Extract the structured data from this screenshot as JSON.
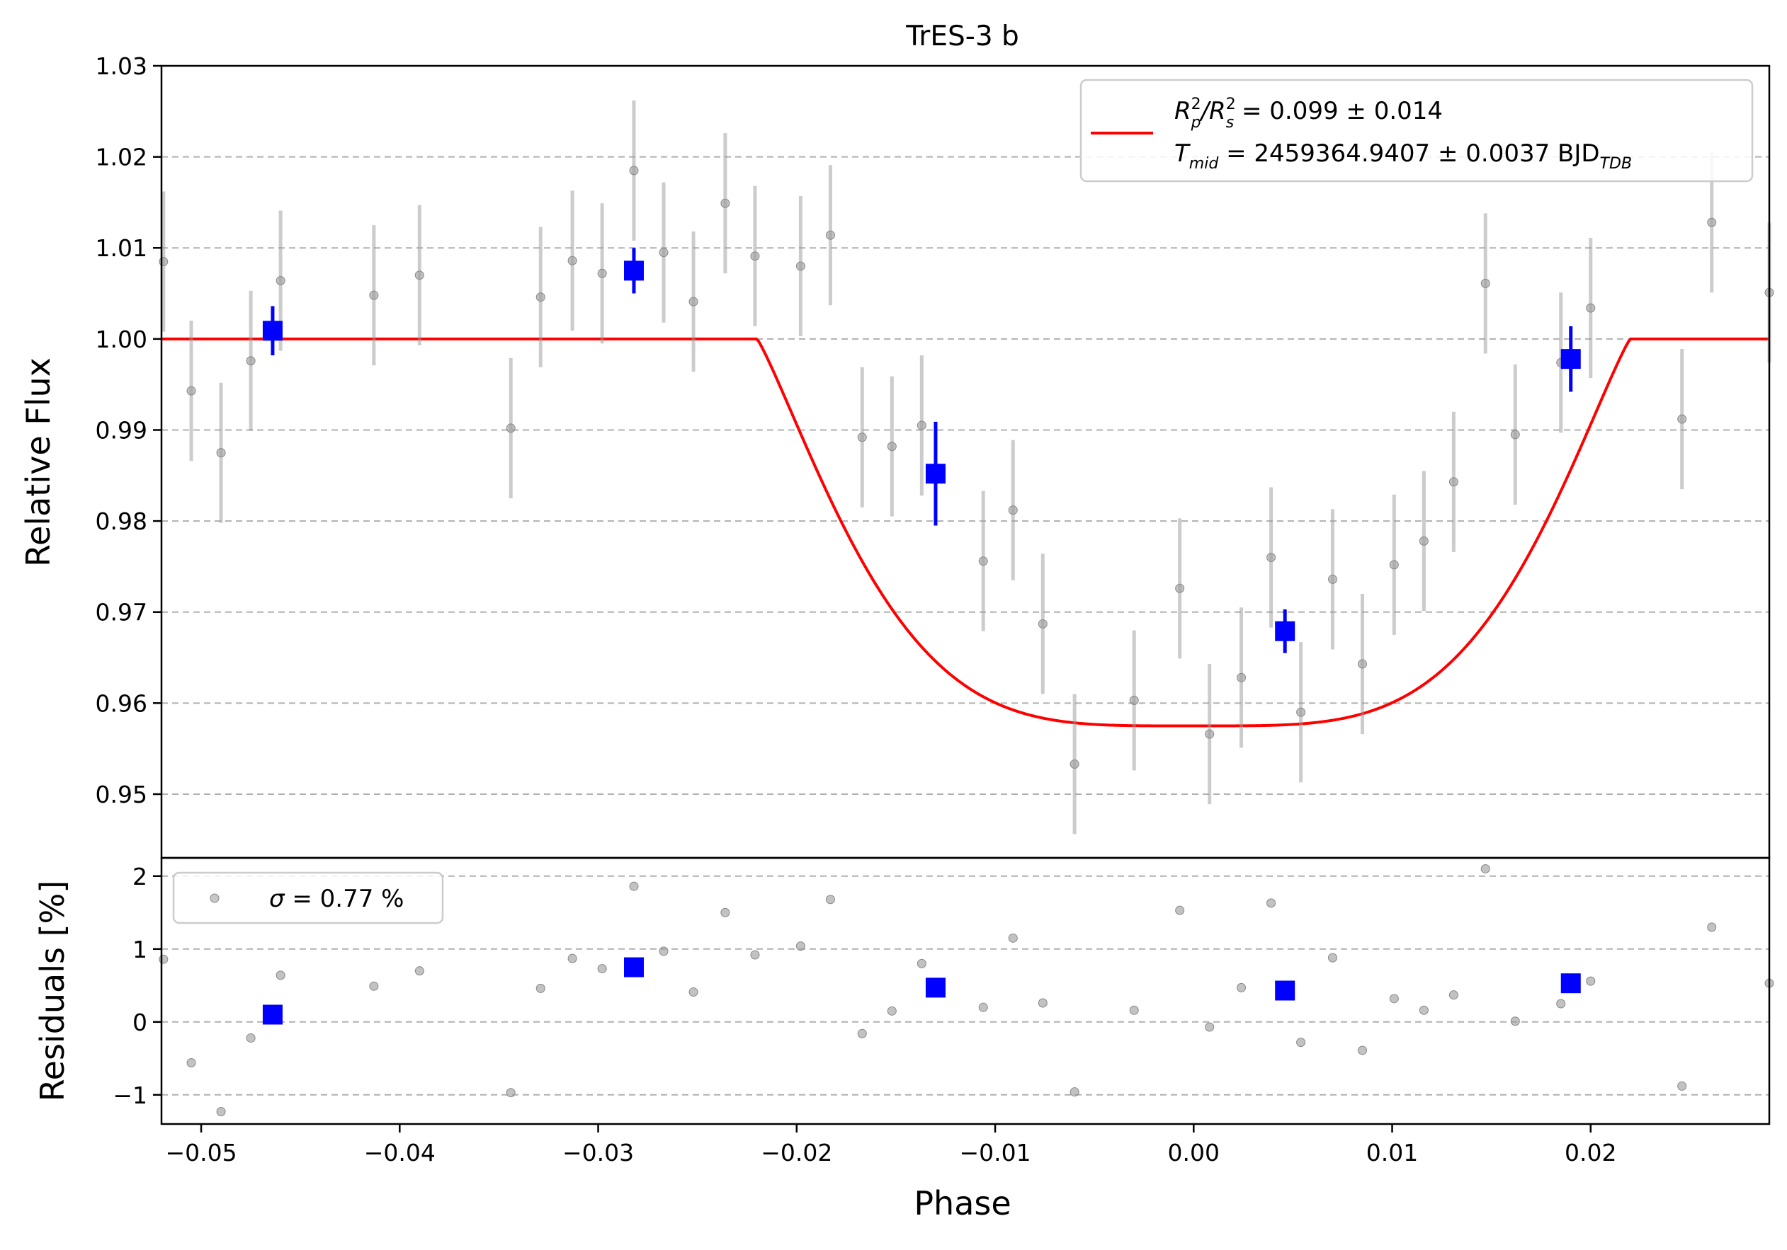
{
  "chart_data": [
    {
      "panel": "light-curve",
      "type": "scatter",
      "title": "TrES-3 b",
      "xlabel": "",
      "ylabel": "Relative Flux",
      "xlim": [
        -0.052,
        0.029
      ],
      "ylim": [
        0.943,
        1.03
      ],
      "y_ticks": [
        "0.95",
        "0.96",
        "0.97",
        "0.98",
        "0.99",
        "1.00",
        "1.01",
        "1.02",
        "1.03"
      ],
      "grid": "horizontal dashed",
      "legend_position": "top-right",
      "legend": {
        "line1_prefix": "R",
        "line1_sup1": "2",
        "line1_sub1": "p",
        "line1_slash": "/R",
        "line1_sup2": "2",
        "line1_sub2": "s",
        "line1_value": " = 0.099 ± 0.014",
        "line2_prefix": "T",
        "line2_sub": "mid",
        "line2_value": " = 2459364.9407 ± 0.0037 BJD",
        "line2_unit_sub": "TDB"
      },
      "series": [
        {
          "role": "observations",
          "color": "#999999",
          "points": [
            {
              "x": -0.0519,
              "y": 1.0085,
              "err": 0.0077
            },
            {
              "x": -0.0505,
              "y": 0.9943,
              "err": 0.0077
            },
            {
              "x": -0.049,
              "y": 0.9875,
              "err": 0.0077
            },
            {
              "x": -0.0475,
              "y": 0.9976,
              "err": 0.0077
            },
            {
              "x": -0.046,
              "y": 1.0064,
              "err": 0.0077
            },
            {
              "x": -0.0413,
              "y": 1.0048,
              "err": 0.0077
            },
            {
              "x": -0.039,
              "y": 1.007,
              "err": 0.0077
            },
            {
              "x": -0.0344,
              "y": 0.9902,
              "err": 0.0077
            },
            {
              "x": -0.0329,
              "y": 1.0046,
              "err": 0.0077
            },
            {
              "x": -0.0313,
              "y": 1.0086,
              "err": 0.0077
            },
            {
              "x": -0.0298,
              "y": 1.0072,
              "err": 0.0077
            },
            {
              "x": -0.0282,
              "y": 1.0185,
              "err": 0.0077
            },
            {
              "x": -0.0267,
              "y": 1.0095,
              "err": 0.0077
            },
            {
              "x": -0.0252,
              "y": 1.0041,
              "err": 0.0077
            },
            {
              "x": -0.0236,
              "y": 1.0149,
              "err": 0.0077
            },
            {
              "x": -0.0221,
              "y": 1.0091,
              "err": 0.0077
            },
            {
              "x": -0.0198,
              "y": 1.008,
              "err": 0.0077
            },
            {
              "x": -0.0183,
              "y": 1.0114,
              "err": 0.0077
            },
            {
              "x": -0.0167,
              "y": 0.9892,
              "err": 0.0077
            },
            {
              "x": -0.0152,
              "y": 0.9882,
              "err": 0.0077
            },
            {
              "x": -0.0137,
              "y": 0.9905,
              "err": 0.0077
            },
            {
              "x": -0.0106,
              "y": 0.9756,
              "err": 0.0077
            },
            {
              "x": -0.0091,
              "y": 0.9812,
              "err": 0.0077
            },
            {
              "x": -0.0076,
              "y": 0.9687,
              "err": 0.0077
            },
            {
              "x": -0.006,
              "y": 0.9533,
              "err": 0.0077
            },
            {
              "x": -0.003,
              "y": 0.9603,
              "err": 0.0077
            },
            {
              "x": -0.0007,
              "y": 0.9726,
              "err": 0.0077
            },
            {
              "x": 0.0008,
              "y": 0.9566,
              "err": 0.0077
            },
            {
              "x": 0.0024,
              "y": 0.9628,
              "err": 0.0077
            },
            {
              "x": 0.0039,
              "y": 0.976,
              "err": 0.0077
            },
            {
              "x": 0.0054,
              "y": 0.959,
              "err": 0.0077
            },
            {
              "x": 0.007,
              "y": 0.9736,
              "err": 0.0077
            },
            {
              "x": 0.0085,
              "y": 0.9643,
              "err": 0.0077
            },
            {
              "x": 0.0101,
              "y": 0.9752,
              "err": 0.0077
            },
            {
              "x": 0.0116,
              "y": 0.9778,
              "err": 0.0077
            },
            {
              "x": 0.0131,
              "y": 0.9843,
              "err": 0.0077
            },
            {
              "x": 0.0147,
              "y": 1.0061,
              "err": 0.0077
            },
            {
              "x": 0.0162,
              "y": 0.9895,
              "err": 0.0077
            },
            {
              "x": 0.0185,
              "y": 0.9974,
              "err": 0.0077
            },
            {
              "x": 0.02,
              "y": 1.0034,
              "err": 0.0077
            },
            {
              "x": 0.0246,
              "y": 0.9912,
              "err": 0.0077
            },
            {
              "x": 0.0261,
              "y": 1.0128,
              "err": 0.0077
            },
            {
              "x": 0.029,
              "y": 1.0051,
              "err": 0.0077
            }
          ]
        },
        {
          "role": "binned",
          "color": "#0000ff",
          "points": [
            {
              "x": -0.0464,
              "y": 1.0009,
              "err": 0.0027
            },
            {
              "x": -0.0282,
              "y": 1.0075,
              "err": 0.0025
            },
            {
              "x": -0.013,
              "y": 0.9852,
              "err": 0.0057
            },
            {
              "x": 0.0046,
              "y": 0.9679,
              "err": 0.0024
            },
            {
              "x": 0.019,
              "y": 0.9978,
              "err": 0.0036
            }
          ]
        },
        {
          "role": "model",
          "color": "#ff0000",
          "shape": {
            "baseline": 1.0,
            "depth_min": 0.9575,
            "t1": -0.022,
            "t2": -0.0055,
            "t3": 0.0055,
            "t4": 0.022
          }
        }
      ]
    },
    {
      "panel": "residuals",
      "type": "scatter",
      "xlabel": "Phase",
      "ylabel": "Residuals [%]",
      "xlim": [
        -0.052,
        0.029
      ],
      "ylim": [
        -1.4,
        2.25
      ],
      "x_ticks": [
        "−0.05",
        "−0.04",
        "−0.03",
        "−0.02",
        "−0.01",
        "0.00",
        "0.01",
        "0.02"
      ],
      "y_ticks": [
        "−1",
        "0",
        "1",
        "2"
      ],
      "grid": "horizontal dashed",
      "legend_position": "top-left",
      "legend": {
        "sigma_symbol": "σ",
        "sigma_text": " = 0.77 %"
      },
      "series": [
        {
          "role": "observations",
          "color": "#999999",
          "points": [
            {
              "x": -0.0519,
              "y": 0.86
            },
            {
              "x": -0.0505,
              "y": -0.56
            },
            {
              "x": -0.049,
              "y": -1.23
            },
            {
              "x": -0.0475,
              "y": -0.22
            },
            {
              "x": -0.046,
              "y": 0.64
            },
            {
              "x": -0.0413,
              "y": 0.49
            },
            {
              "x": -0.039,
              "y": 0.7
            },
            {
              "x": -0.0344,
              "y": -0.97
            },
            {
              "x": -0.0329,
              "y": 0.46
            },
            {
              "x": -0.0313,
              "y": 0.87
            },
            {
              "x": -0.0298,
              "y": 0.73
            },
            {
              "x": -0.0282,
              "y": 1.86
            },
            {
              "x": -0.0267,
              "y": 0.97
            },
            {
              "x": -0.0252,
              "y": 0.41
            },
            {
              "x": -0.0236,
              "y": 1.5
            },
            {
              "x": -0.0221,
              "y": 0.92
            },
            {
              "x": -0.0198,
              "y": 1.04
            },
            {
              "x": -0.0183,
              "y": 1.68
            },
            {
              "x": -0.0167,
              "y": -0.16
            },
            {
              "x": -0.0152,
              "y": 0.15
            },
            {
              "x": -0.0137,
              "y": 0.8
            },
            {
              "x": -0.0106,
              "y": 0.2
            },
            {
              "x": -0.0091,
              "y": 1.15
            },
            {
              "x": -0.0076,
              "y": 0.26
            },
            {
              "x": -0.006,
              "y": -0.96
            },
            {
              "x": -0.003,
              "y": 0.16
            },
            {
              "x": -0.0007,
              "y": 1.53
            },
            {
              "x": 0.0008,
              "y": -0.07
            },
            {
              "x": 0.0024,
              "y": 0.47
            },
            {
              "x": 0.0039,
              "y": 1.63
            },
            {
              "x": 0.0054,
              "y": -0.28
            },
            {
              "x": 0.007,
              "y": 0.88
            },
            {
              "x": 0.0085,
              "y": -0.39
            },
            {
              "x": 0.0101,
              "y": 0.32
            },
            {
              "x": 0.0116,
              "y": 0.16
            },
            {
              "x": 0.0131,
              "y": 0.37
            },
            {
              "x": 0.0147,
              "y": 2.1
            },
            {
              "x": 0.0162,
              "y": 0.01
            },
            {
              "x": 0.0185,
              "y": 0.25
            },
            {
              "x": 0.02,
              "y": 0.56
            },
            {
              "x": 0.0246,
              "y": -0.88
            },
            {
              "x": 0.0261,
              "y": 1.3
            },
            {
              "x": 0.029,
              "y": 0.53
            }
          ]
        },
        {
          "role": "binned",
          "color": "#0000ff",
          "points": [
            {
              "x": -0.0464,
              "y": 0.1
            },
            {
              "x": -0.0282,
              "y": 0.75
            },
            {
              "x": -0.013,
              "y": 0.47
            },
            {
              "x": 0.0046,
              "y": 0.43
            },
            {
              "x": 0.019,
              "y": 0.53
            }
          ]
        }
      ]
    }
  ]
}
